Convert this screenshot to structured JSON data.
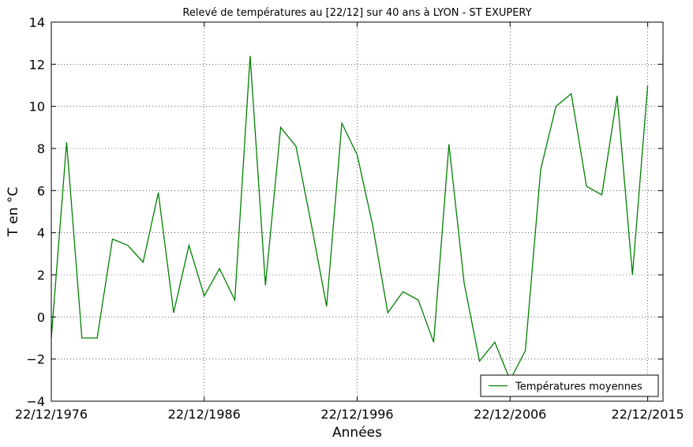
{
  "chart_data": {
    "type": "line",
    "title": "Relevé de températures au [22/12] sur 40 ans à LYON - ST EXUPERY",
    "xlabel": "Années",
    "ylabel": "T en °C",
    "x_tick_labels": [
      "22/12/1976",
      "22/12/1986",
      "22/12/1996",
      "22/12/2006",
      "22/12/2015"
    ],
    "x_ticks": [
      1976,
      1986,
      1996,
      2006,
      2015
    ],
    "xlim": [
      1976,
      2016
    ],
    "y_ticks": [
      -4,
      -2,
      0,
      2,
      4,
      6,
      8,
      10,
      12,
      14
    ],
    "y_tick_labels": [
      "−4",
      "−2",
      "0",
      "2",
      "4",
      "6",
      "8",
      "10",
      "12",
      "14"
    ],
    "ylim": [
      -4,
      14
    ],
    "grid": true,
    "legend_position": "lower-right",
    "color": "#008000",
    "series": [
      {
        "name": "Températures moyennes",
        "x": [
          1976,
          1977,
          1978,
          1979,
          1980,
          1981,
          1982,
          1983,
          1984,
          1985,
          1986,
          1987,
          1988,
          1989,
          1990,
          1991,
          1992,
          1993,
          1994,
          1995,
          1996,
          1997,
          1998,
          1999,
          2000,
          2001,
          2002,
          2003,
          2004,
          2005,
          2006,
          2007,
          2008,
          2009,
          2010,
          2011,
          2012,
          2013,
          2014,
          2015
        ],
        "y": [
          -1.0,
          8.3,
          -1.0,
          -1.0,
          3.7,
          3.4,
          2.6,
          5.9,
          0.2,
          3.4,
          1.0,
          2.3,
          0.8,
          12.4,
          1.5,
          9.0,
          8.1,
          4.4,
          0.5,
          9.2,
          7.7,
          4.4,
          0.2,
          1.2,
          0.8,
          -1.2,
          8.2,
          1.6,
          -2.1,
          -1.2,
          -3.0,
          -1.6,
          7.0,
          10.0,
          10.6,
          6.2,
          5.8,
          10.5,
          2.0,
          11.0
        ]
      }
    ]
  }
}
